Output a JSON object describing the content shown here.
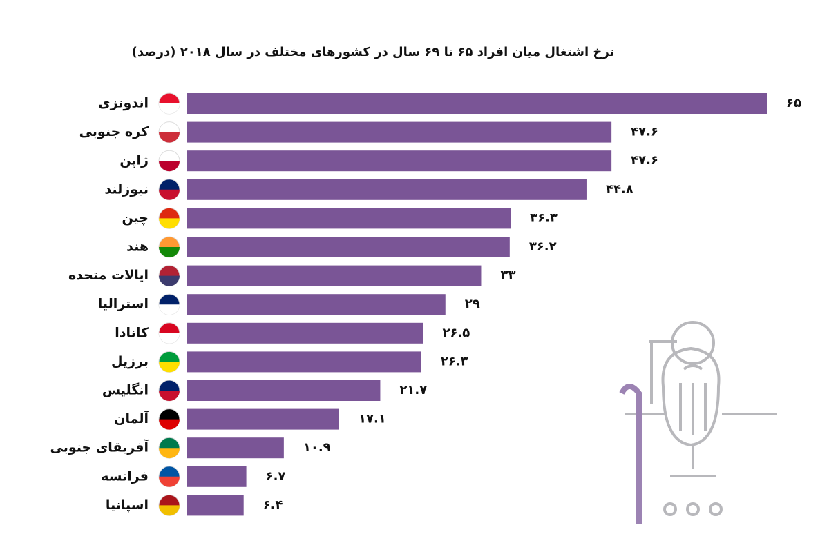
{
  "chart_data": {
    "type": "bar",
    "orientation": "horizontal",
    "title": "نرخ اشتغال میان افراد ۶۵ تا ۶۹ سال در کشورهای مختلف در سال ۲۰۱۸ (درصد)",
    "categories": [
      "اندونزی",
      "کره جنوبی",
      "ژاپن",
      "نیوزلند",
      "چین",
      "هند",
      "ایالات متحده",
      "استرالیا",
      "کانادا",
      "برزیل",
      "انگلیس",
      "آلمان",
      "آفریقای جنوبی",
      "فرانسه",
      "اسپانیا"
    ],
    "values": [
      65,
      47.6,
      47.6,
      44.8,
      36.3,
      36.2,
      33,
      29,
      26.5,
      26.3,
      21.7,
      17.1,
      10.9,
      6.7,
      6.4
    ],
    "value_labels": [
      "۶۵",
      "۴۷.۶",
      "۴۷.۶",
      "۴۴.۸",
      "۳۶.۳",
      "۳۶.۲",
      "۳۳",
      "۲۹",
      "۲۶.۵",
      "۲۶.۳",
      "۲۱.۷",
      "۱۷.۱",
      "۱۰.۹",
      "۶.۷",
      "۶.۴"
    ],
    "color": "#7a5596"
  }
}
